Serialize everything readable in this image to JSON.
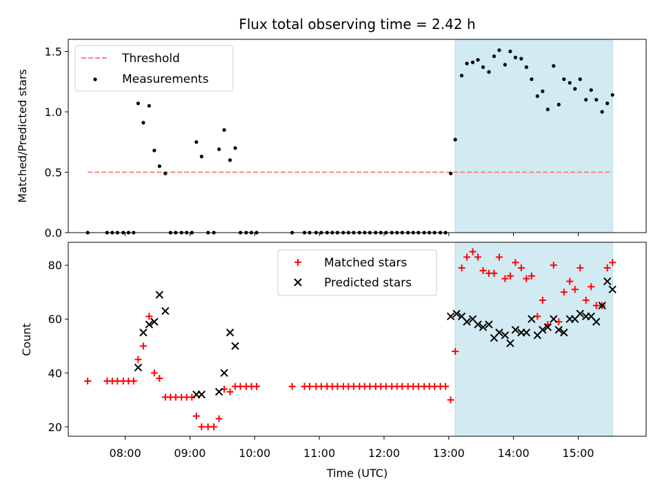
{
  "chart_data": {
    "title": "Flux total observing time = 2.42 h",
    "xlabel": "Time (UTC)",
    "x_ticks": [
      "08:00",
      "09:00",
      "10:00",
      "11:00",
      "12:00",
      "13:00",
      "14:00",
      "15:00"
    ],
    "x_tick_hours": [
      8,
      9,
      10,
      11,
      12,
      13,
      14,
      15
    ],
    "xlim_hours": [
      7.12,
      16.05
    ],
    "shaded_span_hours": [
      13.1,
      15.53
    ],
    "shaded_color": "#add8e6",
    "panels": [
      {
        "type": "scatter",
        "ylabel": "Matched/Predicted stars",
        "ylim": [
          0,
          1.6
        ],
        "y_ticks": [
          0.0,
          0.5,
          1.0,
          1.5
        ],
        "y_tick_labels": [
          "0.0",
          "0.5",
          "1.0",
          "1.5"
        ],
        "legend_position": "upper left",
        "threshold": {
          "name": "Threshold",
          "value": 0.5,
          "x_range": [
            7.42,
            15.52
          ],
          "color": "#ff7f7f",
          "style": "dashed"
        },
        "series": [
          {
            "name": "Measurements",
            "color": "#000000",
            "marker": "dot",
            "points": [
              [
                7.42,
                0
              ],
              [
                7.72,
                0
              ],
              [
                7.8,
                0
              ],
              [
                7.88,
                0
              ],
              [
                7.97,
                0
              ],
              [
                8.05,
                0
              ],
              [
                8.13,
                0
              ],
              [
                8.2,
                1.07
              ],
              [
                8.28,
                0.91
              ],
              [
                8.37,
                1.05
              ],
              [
                8.45,
                0.68
              ],
              [
                8.53,
                0.55
              ],
              [
                8.62,
                0.49
              ],
              [
                8.7,
                0
              ],
              [
                8.78,
                0
              ],
              [
                8.87,
                0
              ],
              [
                8.95,
                0
              ],
              [
                9.03,
                0
              ],
              [
                9.1,
                0.75
              ],
              [
                9.18,
                0.63
              ],
              [
                9.28,
                0
              ],
              [
                9.37,
                0
              ],
              [
                9.45,
                0.69
              ],
              [
                9.53,
                0.85
              ],
              [
                9.62,
                0.6
              ],
              [
                9.7,
                0.7
              ],
              [
                9.78,
                0
              ],
              [
                9.87,
                0
              ],
              [
                9.95,
                0
              ],
              [
                10.03,
                0
              ],
              [
                10.58,
                0
              ],
              [
                10.77,
                0
              ],
              [
                10.85,
                0
              ],
              [
                10.95,
                0
              ],
              [
                11.03,
                0
              ],
              [
                11.12,
                0
              ],
              [
                11.2,
                0
              ],
              [
                11.28,
                0
              ],
              [
                11.37,
                0
              ],
              [
                11.45,
                0
              ],
              [
                11.53,
                0
              ],
              [
                11.62,
                0
              ],
              [
                11.7,
                0
              ],
              [
                11.78,
                0
              ],
              [
                11.87,
                0
              ],
              [
                11.95,
                0
              ],
              [
                12.03,
                0
              ],
              [
                12.12,
                0
              ],
              [
                12.2,
                0
              ],
              [
                12.28,
                0
              ],
              [
                12.37,
                0
              ],
              [
                12.45,
                0
              ],
              [
                12.53,
                0
              ],
              [
                12.62,
                0
              ],
              [
                12.7,
                0
              ],
              [
                12.78,
                0
              ],
              [
                12.87,
                0
              ],
              [
                12.95,
                0
              ],
              [
                13.03,
                0.49
              ],
              [
                13.1,
                0.77
              ],
              [
                13.2,
                1.3
              ],
              [
                13.28,
                1.4
              ],
              [
                13.37,
                1.41
              ],
              [
                13.45,
                1.43
              ],
              [
                13.53,
                1.37
              ],
              [
                13.62,
                1.33
              ],
              [
                13.7,
                1.46
              ],
              [
                13.78,
                1.51
              ],
              [
                13.87,
                1.39
              ],
              [
                13.95,
                1.5
              ],
              [
                14.03,
                1.45
              ],
              [
                14.12,
                1.44
              ],
              [
                14.2,
                1.37
              ],
              [
                14.28,
                1.27
              ],
              [
                14.37,
                1.13
              ],
              [
                14.45,
                1.17
              ],
              [
                14.53,
                1.02
              ],
              [
                14.62,
                1.38
              ],
              [
                14.7,
                1.06
              ],
              [
                14.78,
                1.27
              ],
              [
                14.87,
                1.24
              ],
              [
                14.95,
                1.19
              ],
              [
                15.03,
                1.27
              ],
              [
                15.12,
                1.1
              ],
              [
                15.2,
                1.18
              ],
              [
                15.28,
                1.1
              ],
              [
                15.37,
                1.0
              ],
              [
                15.45,
                1.07
              ],
              [
                15.53,
                1.14
              ]
            ]
          }
        ]
      },
      {
        "type": "scatter",
        "ylabel": "Count",
        "ylim": [
          16.5,
          88.5
        ],
        "y_ticks": [
          20,
          40,
          60,
          80
        ],
        "y_tick_labels": [
          "20",
          "40",
          "60",
          "80"
        ],
        "legend_position": "upper center",
        "series": [
          {
            "name": "Matched stars",
            "color": "#ff0000",
            "marker": "plus",
            "points": [
              [
                7.42,
                37
              ],
              [
                7.72,
                37
              ],
              [
                7.8,
                37
              ],
              [
                7.88,
                37
              ],
              [
                7.97,
                37
              ],
              [
                8.05,
                37
              ],
              [
                8.13,
                37
              ],
              [
                8.2,
                45
              ],
              [
                8.28,
                50
              ],
              [
                8.37,
                61
              ],
              [
                8.45,
                40
              ],
              [
                8.53,
                38
              ],
              [
                8.62,
                31
              ],
              [
                8.7,
                31
              ],
              [
                8.78,
                31
              ],
              [
                8.87,
                31
              ],
              [
                8.95,
                31
              ],
              [
                9.03,
                31
              ],
              [
                9.1,
                24
              ],
              [
                9.18,
                20
              ],
              [
                9.28,
                20
              ],
              [
                9.37,
                20
              ],
              [
                9.45,
                23
              ],
              [
                9.53,
                34
              ],
              [
                9.62,
                33
              ],
              [
                9.7,
                35
              ],
              [
                9.78,
                35
              ],
              [
                9.87,
                35
              ],
              [
                9.95,
                35
              ],
              [
                10.03,
                35
              ],
              [
                10.58,
                35
              ],
              [
                10.77,
                35
              ],
              [
                10.85,
                35
              ],
              [
                10.95,
                35
              ],
              [
                11.03,
                35
              ],
              [
                11.12,
                35
              ],
              [
                11.2,
                35
              ],
              [
                11.28,
                35
              ],
              [
                11.37,
                35
              ],
              [
                11.45,
                35
              ],
              [
                11.53,
                35
              ],
              [
                11.62,
                35
              ],
              [
                11.7,
                35
              ],
              [
                11.78,
                35
              ],
              [
                11.87,
                35
              ],
              [
                11.95,
                35
              ],
              [
                12.03,
                35
              ],
              [
                12.12,
                35
              ],
              [
                12.2,
                35
              ],
              [
                12.28,
                35
              ],
              [
                12.37,
                35
              ],
              [
                12.45,
                35
              ],
              [
                12.53,
                35
              ],
              [
                12.62,
                35
              ],
              [
                12.7,
                35
              ],
              [
                12.78,
                35
              ],
              [
                12.87,
                35
              ],
              [
                12.95,
                35
              ],
              [
                13.03,
                30
              ],
              [
                13.1,
                48
              ],
              [
                13.2,
                79
              ],
              [
                13.28,
                83
              ],
              [
                13.37,
                85
              ],
              [
                13.45,
                83
              ],
              [
                13.53,
                78
              ],
              [
                13.62,
                77
              ],
              [
                13.7,
                77
              ],
              [
                13.78,
                83
              ],
              [
                13.87,
                75
              ],
              [
                13.95,
                76
              ],
              [
                14.03,
                81
              ],
              [
                14.12,
                79
              ],
              [
                14.2,
                75
              ],
              [
                14.28,
                76
              ],
              [
                14.37,
                61
              ],
              [
                14.45,
                67
              ],
              [
                14.53,
                58
              ],
              [
                14.62,
                80
              ],
              [
                14.7,
                59
              ],
              [
                14.78,
                70
              ],
              [
                14.87,
                74
              ],
              [
                14.95,
                71
              ],
              [
                15.03,
                79
              ],
              [
                15.12,
                67
              ],
              [
                15.2,
                72
              ],
              [
                15.28,
                65
              ],
              [
                15.37,
                65
              ],
              [
                15.45,
                79
              ],
              [
                15.53,
                81
              ]
            ]
          },
          {
            "name": "Predicted stars",
            "color": "#000000",
            "marker": "x",
            "points": [
              [
                8.2,
                42
              ],
              [
                8.28,
                55
              ],
              [
                8.37,
                58
              ],
              [
                8.45,
                59
              ],
              [
                8.53,
                69
              ],
              [
                8.62,
                63
              ],
              [
                9.1,
                32
              ],
              [
                9.18,
                32
              ],
              [
                9.45,
                33
              ],
              [
                9.53,
                40
              ],
              [
                9.62,
                55
              ],
              [
                9.7,
                50
              ],
              [
                13.03,
                61
              ],
              [
                13.12,
                62
              ],
              [
                13.2,
                61
              ],
              [
                13.28,
                59
              ],
              [
                13.37,
                60
              ],
              [
                13.45,
                58
              ],
              [
                13.53,
                57
              ],
              [
                13.62,
                58
              ],
              [
                13.7,
                53
              ],
              [
                13.78,
                55
              ],
              [
                13.87,
                54
              ],
              [
                13.95,
                51
              ],
              [
                14.03,
                56
              ],
              [
                14.12,
                55
              ],
              [
                14.2,
                55
              ],
              [
                14.28,
                60
              ],
              [
                14.37,
                54
              ],
              [
                14.45,
                56
              ],
              [
                14.53,
                57
              ],
              [
                14.62,
                60
              ],
              [
                14.7,
                56
              ],
              [
                14.78,
                55
              ],
              [
                14.87,
                60
              ],
              [
                14.95,
                60
              ],
              [
                15.03,
                62
              ],
              [
                15.12,
                61
              ],
              [
                15.2,
                61
              ],
              [
                15.28,
                59
              ],
              [
                15.37,
                65
              ],
              [
                15.45,
                74
              ],
              [
                15.53,
                71
              ]
            ]
          }
        ]
      }
    ]
  }
}
